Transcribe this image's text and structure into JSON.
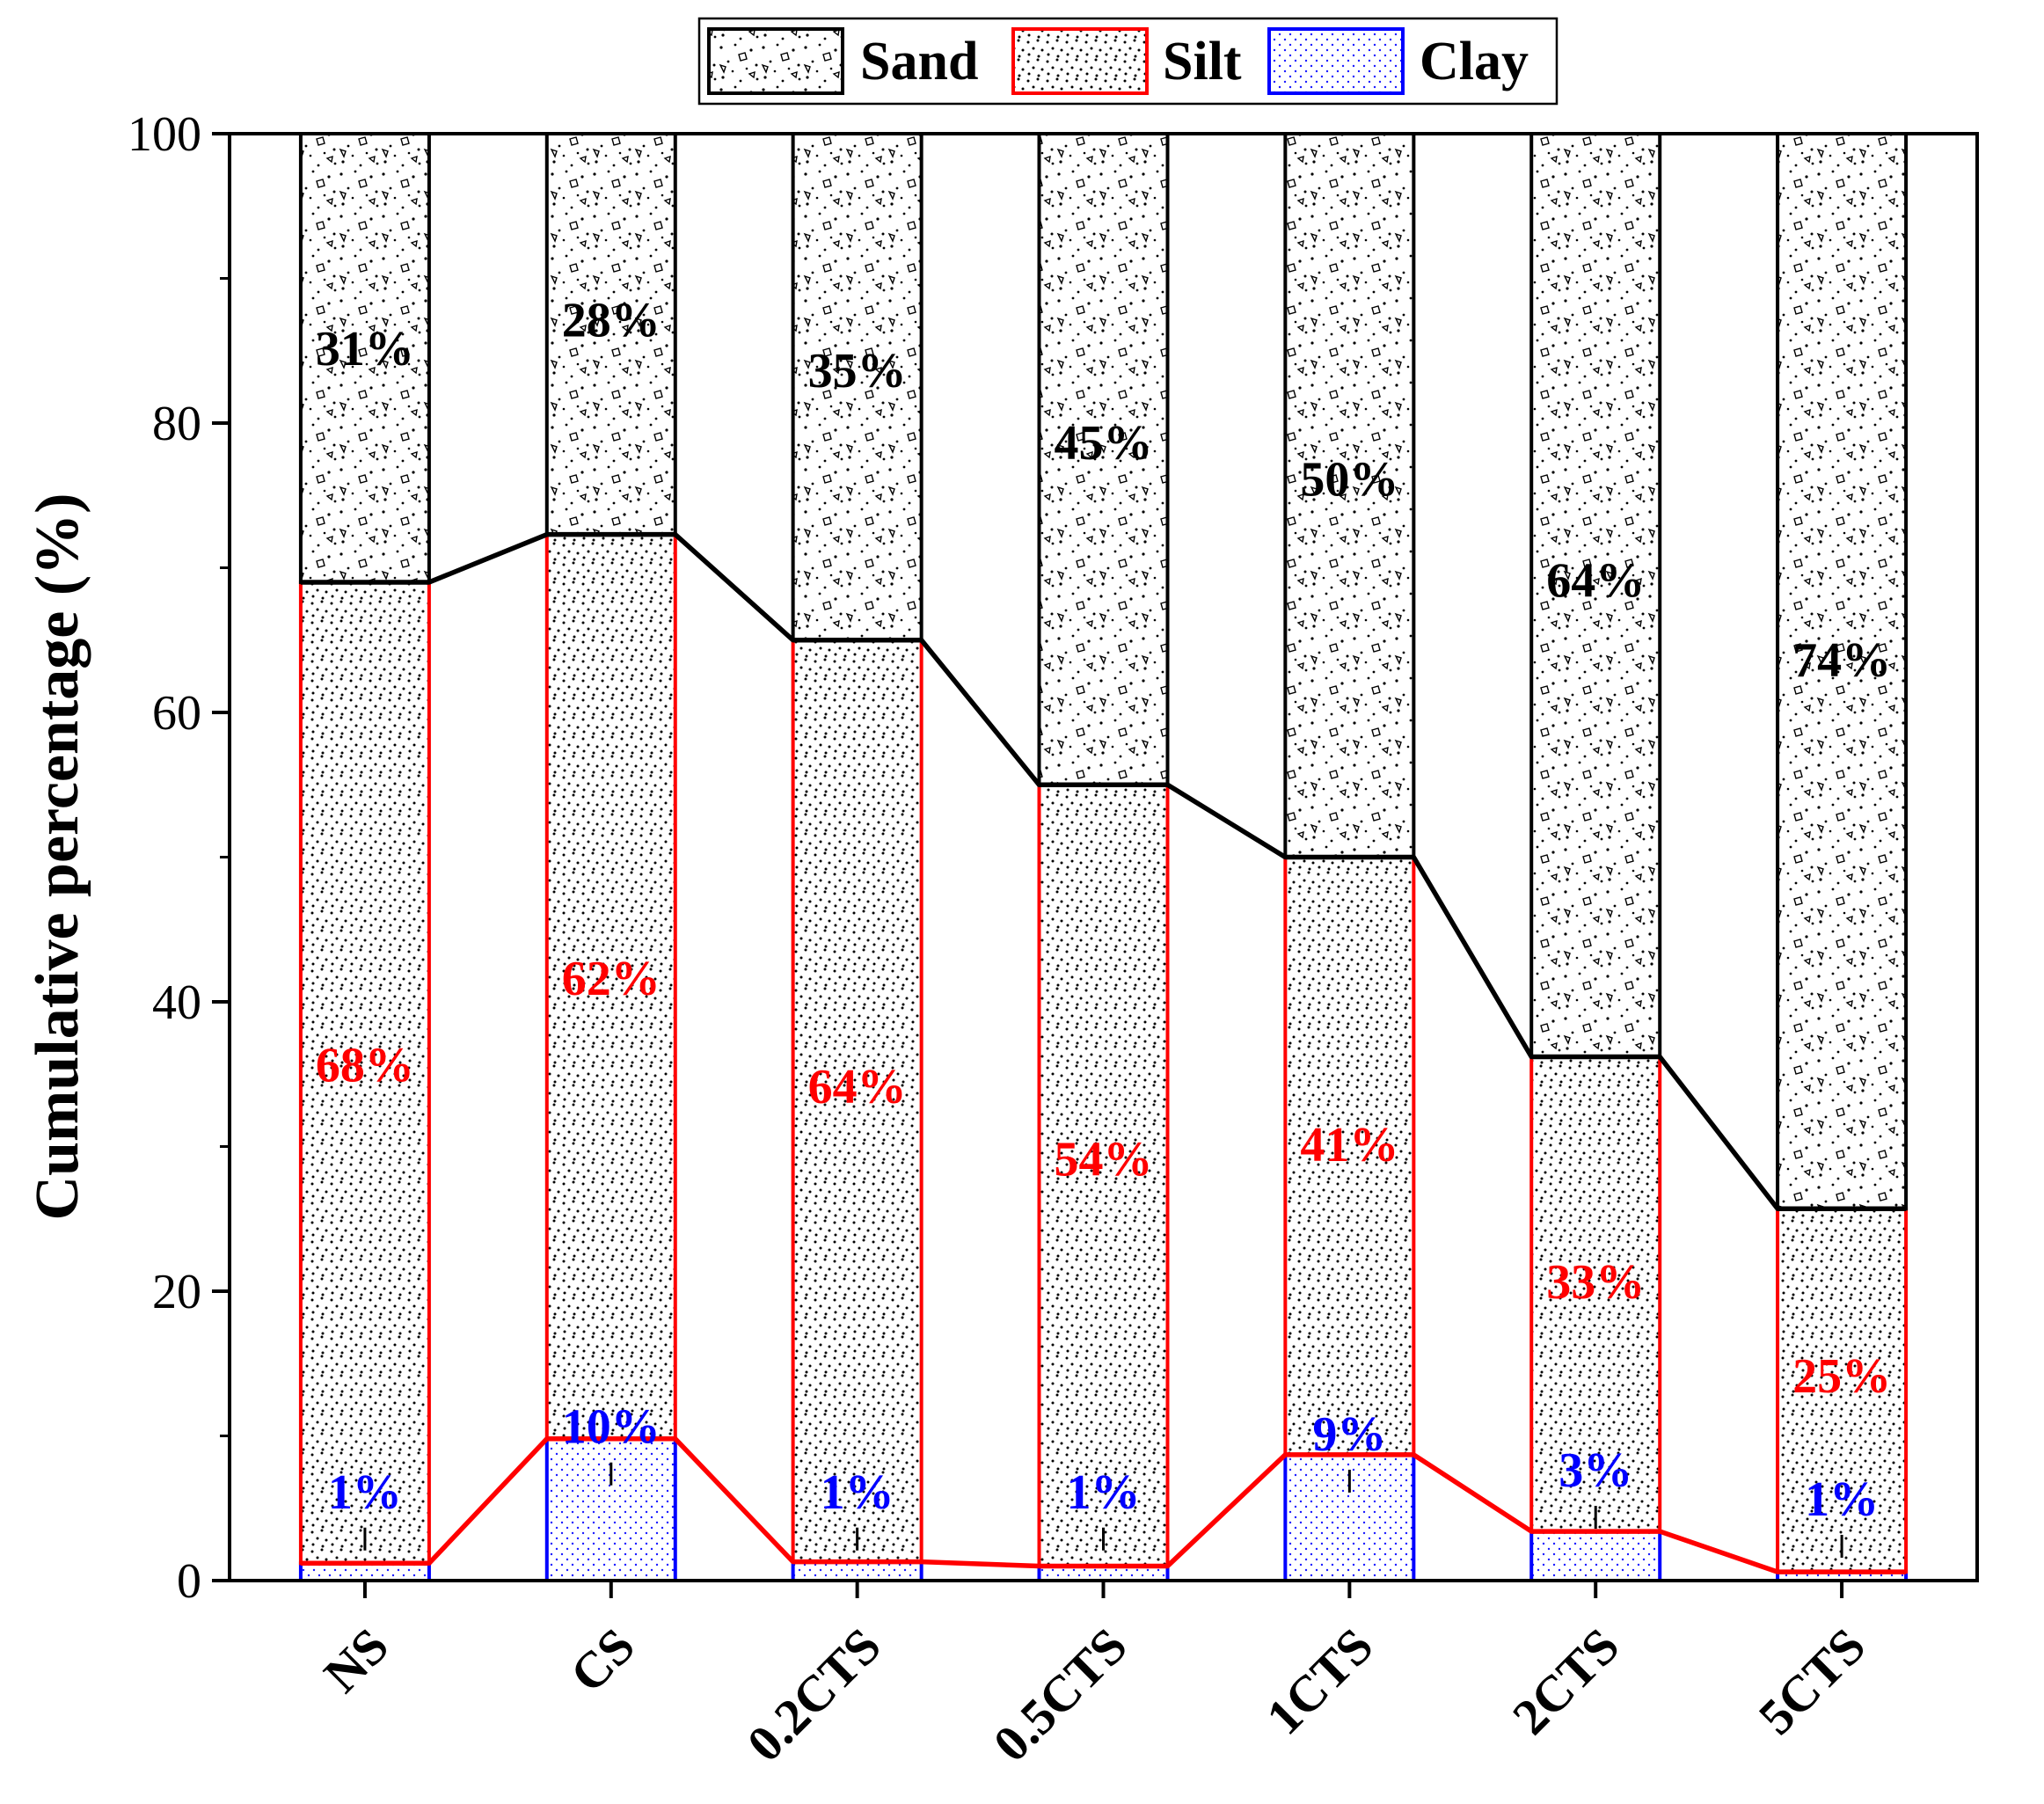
{
  "chart_data": {
    "type": "bar",
    "stacked": true,
    "title": "",
    "xlabel": "",
    "ylabel": "Cumulative percentage (%)",
    "ylim": [
      0,
      100
    ],
    "yticks": [
      0,
      20,
      40,
      60,
      80,
      100
    ],
    "grid": false,
    "legend_position": "top-center",
    "categories": [
      "NS",
      "CS",
      "0.2CTS",
      "0.5CTS",
      "1CTS",
      "2CTS",
      "5CTS"
    ],
    "series": [
      {
        "name": "Clay",
        "color": "#0000ff",
        "pattern": "fine-dots",
        "values": [
          1,
          10,
          1,
          1,
          9,
          3,
          1
        ],
        "labels": [
          "1%",
          "10%",
          "1%",
          "1%",
          "9%",
          "3%",
          "1%"
        ],
        "boundary": [
          1.2,
          9.8,
          1.3,
          1.0,
          8.7,
          3.4,
          0.6
        ]
      },
      {
        "name": "Silt",
        "color": "#ff0000",
        "pattern": "dots",
        "values": [
          68,
          62,
          64,
          54,
          41,
          33,
          25
        ],
        "labels": [
          "68%",
          "62%",
          "64%",
          "54%",
          "41%",
          "33%",
          "25%"
        ],
        "boundary": [
          69,
          72.3,
          65,
          55,
          50,
          36.2,
          25.7
        ]
      },
      {
        "name": "Sand",
        "color": "#000000",
        "pattern": "pebbles",
        "values": [
          31,
          28,
          35,
          45,
          50,
          64,
          74
        ],
        "labels": [
          "31%",
          "28%",
          "35%",
          "45%",
          "50%",
          "64%",
          "74%"
        ],
        "boundary": [
          100,
          100,
          100,
          100,
          100,
          100,
          100
        ]
      }
    ],
    "label_y": {
      "Sand": [
        84,
        86,
        82.5,
        77.5,
        75,
        68,
        62.5
      ],
      "Silt": [
        34.5,
        40.5,
        33,
        28,
        29,
        19.5,
        13
      ],
      "Clay": [
        5,
        9.5,
        5,
        5,
        9,
        6.5,
        4.5
      ]
    }
  }
}
